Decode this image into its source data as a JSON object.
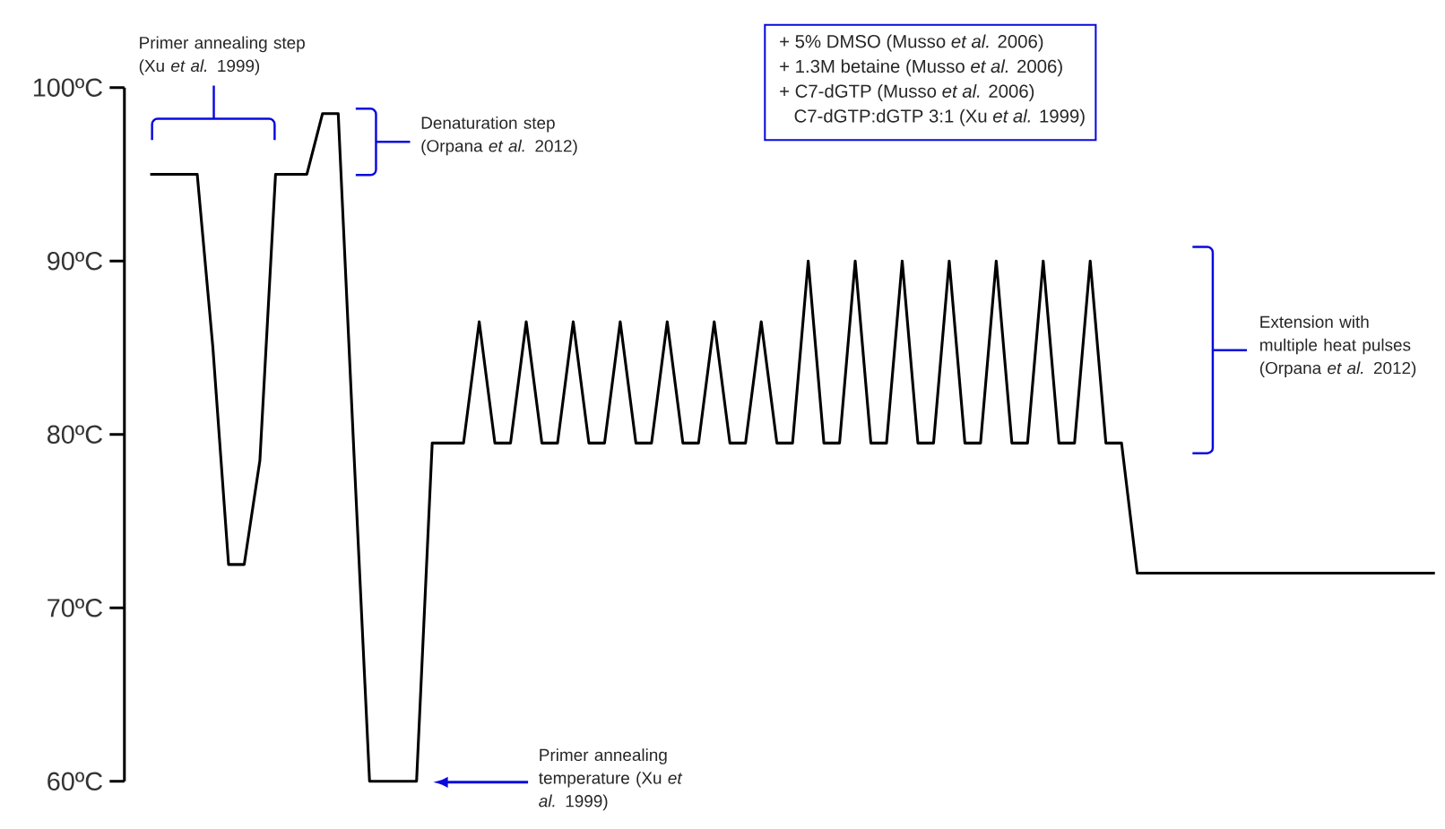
{
  "chart_data": {
    "type": "line",
    "categories": [
      null,
      null,
      null,
      null,
      null,
      null,
      null,
      null,
      null,
      null,
      null,
      null,
      null,
      null,
      null,
      null,
      null,
      null,
      null,
      null,
      null,
      null,
      null,
      null,
      null,
      null,
      null,
      null,
      null,
      null,
      null,
      null,
      null,
      null,
      null,
      null,
      null,
      null,
      null,
      null,
      null,
      null,
      null,
      null,
      null,
      null,
      null,
      null,
      null,
      null,
      null,
      null,
      null,
      null,
      null,
      null,
      null,
      null,
      null,
      null,
      null,
      null,
      null,
      null,
      null,
      null,
      null,
      null,
      null,
      null,
      null,
      null,
      null,
      null,
      null,
      null,
      null,
      null,
      null,
      null,
      null,
      null,
      null
    ],
    "series": [
      {
        "color": "#000000",
        "values": [
          95,
          95,
          95,
          95,
          85,
          72.5,
          72.5,
          78.5,
          95,
          95,
          95,
          98.5,
          98.5,
          79,
          60,
          60,
          60,
          60,
          79.5,
          79.5,
          79.5,
          86.5,
          79.5,
          79.5,
          86.5,
          79.5,
          79.5,
          86.5,
          79.5,
          79.5,
          86.5,
          79.5,
          79.5,
          86.5,
          79.5,
          79.5,
          86.5,
          79.5,
          79.5,
          86.5,
          79.5,
          79.5,
          90,
          79.5,
          79.5,
          90,
          79.5,
          79.5,
          90,
          79.5,
          79.5,
          90,
          79.5,
          79.5,
          90,
          79.5,
          79.5,
          90,
          79.5,
          79.5,
          90,
          79.5,
          79.5,
          72,
          72,
          72,
          72,
          72,
          72,
          72,
          72,
          72,
          72,
          72,
          72,
          72,
          72,
          72,
          72,
          72,
          72,
          72,
          72
        ]
      }
    ],
    "ylim": [
      60,
      100
    ],
    "yticks": [
      {
        "value": 60,
        "label": "60ºC"
      },
      {
        "value": 70,
        "label": "70ºC"
      },
      {
        "value": 80,
        "label": "80ºC"
      },
      {
        "value": 90,
        "label": "90ºC"
      },
      {
        "value": 100,
        "label": "100ºC"
      }
    ],
    "tick_labels": "y",
    "marker": "none",
    "line_style": "solid",
    "annotations": [
      "Primer annealing step (Xu *et al.* 1999)",
      "Denaturation step (Orpana *et al.* 2012)",
      "+ 5% DMSO (Musso *et al.* 2006)",
      "+ 1.3M betaine (Musso *et al.* 2006)",
      "+ C7-dGTP (Musso *et al.* 2006)",
      "C7-dGTP:dGTP 3:1 (Xu *et al.* 1999)",
      "Extension with multiple heat pulses (Orpana *et al.* 2012)",
      "Primer annealing temperature (Xu *et al.* 1999)"
    ]
  }
}
